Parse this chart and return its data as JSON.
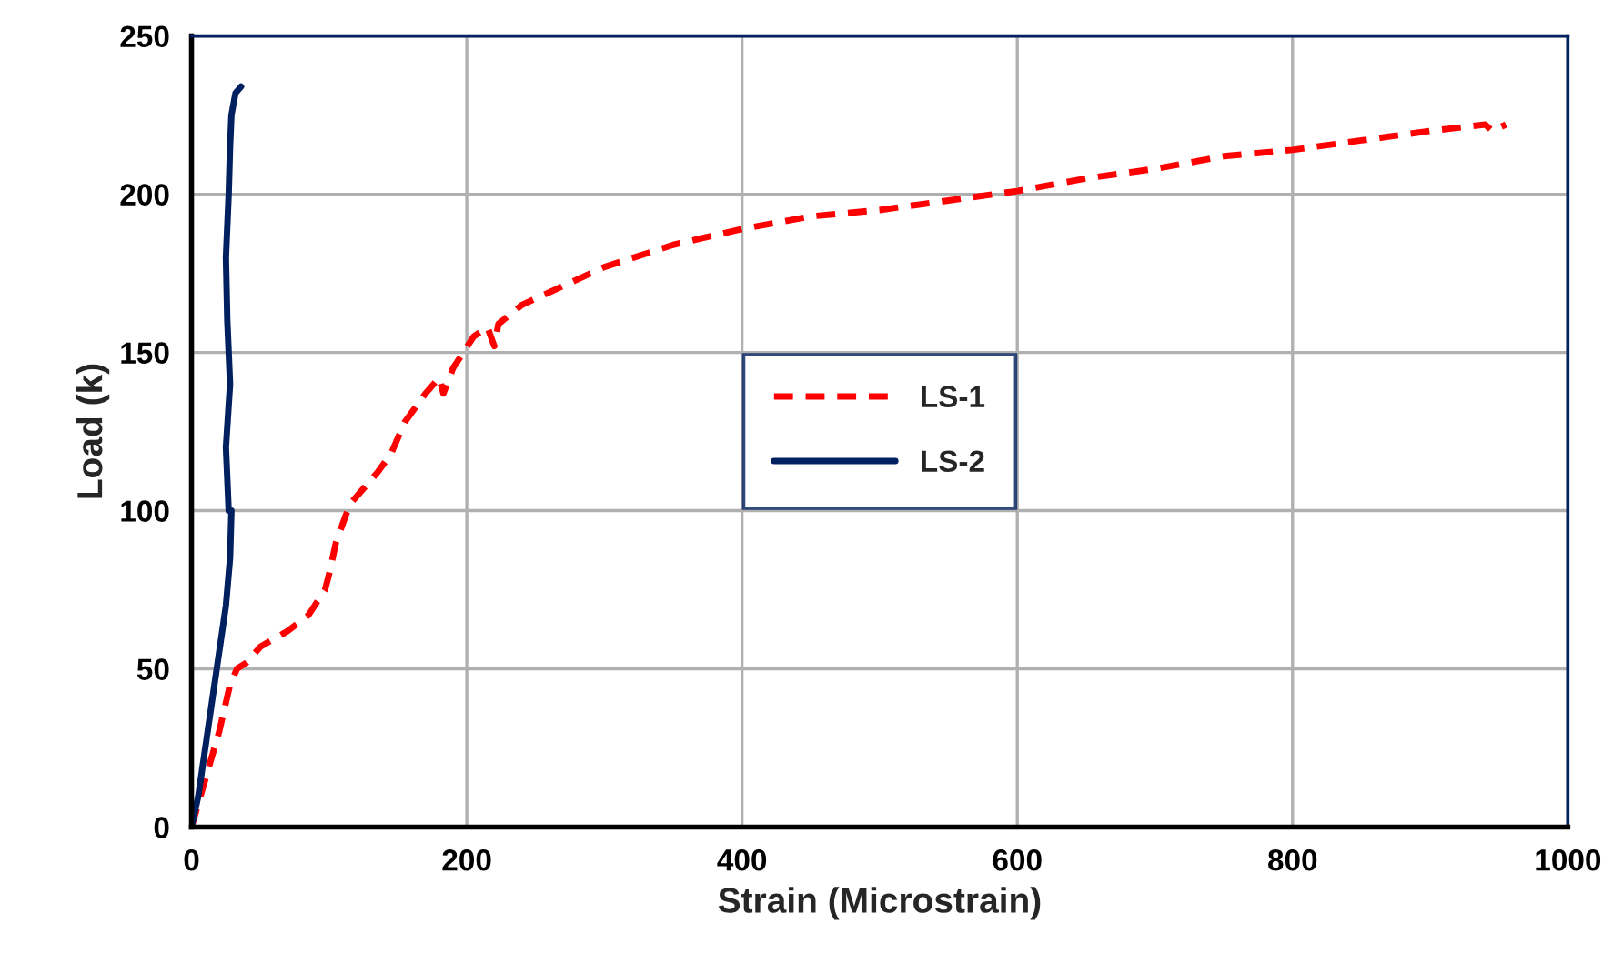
{
  "chart_data": {
    "type": "line",
    "xlabel": "Strain (Microstrain)",
    "ylabel": "Load (k)",
    "xlim": [
      0,
      1000
    ],
    "xticks": [
      0,
      200,
      400,
      600,
      800,
      1000
    ],
    "ylim": [
      0,
      250
    ],
    "yticks": [
      0,
      50,
      100,
      150,
      200,
      250
    ],
    "grid": true,
    "legend": "center",
    "marker": "none",
    "series": [
      {
        "name": "LS-1",
        "color": "#ff0000",
        "line_style": "dashed",
        "x": [
          0,
          10,
          20,
          28,
          33,
          40,
          50,
          70,
          85,
          97,
          100,
          105,
          115,
          135,
          145,
          155,
          170,
          180,
          183,
          190,
          205,
          215,
          220,
          223,
          240,
          270,
          300,
          350,
          400,
          450,
          500,
          550,
          600,
          650,
          700,
          750,
          800,
          850,
          900,
          940,
          945,
          955
        ],
        "values": [
          0,
          15,
          30,
          45,
          50,
          52,
          57,
          62,
          67,
          75,
          80,
          90,
          102,
          112,
          118,
          128,
          137,
          142,
          137,
          145,
          155,
          158,
          152,
          159,
          165,
          171,
          177,
          184,
          189,
          193,
          195,
          198,
          201,
          205,
          208,
          212,
          214,
          217,
          220,
          222,
          220,
          222
        ]
      },
      {
        "name": "LS-2",
        "color": "#002060",
        "line_style": "solid",
        "x": [
          0,
          5,
          10,
          15,
          20,
          25,
          28,
          29,
          27,
          25,
          28,
          26,
          25,
          27,
          28,
          29,
          32,
          36
        ],
        "values": [
          0,
          10,
          25,
          40,
          55,
          70,
          85,
          100,
          100,
          120,
          140,
          160,
          180,
          200,
          215,
          225,
          232,
          234
        ]
      }
    ]
  }
}
